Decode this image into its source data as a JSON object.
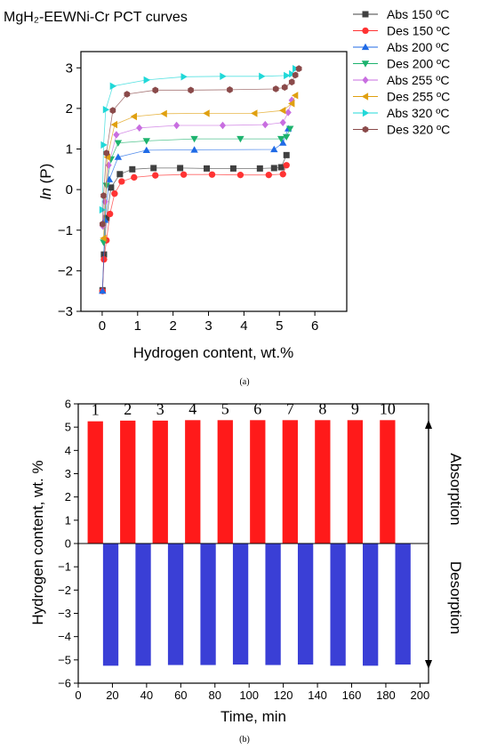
{
  "chart_data": [
    {
      "type": "scatter",
      "title": "MgH₂-EEWNi-Cr PCT curves",
      "xlabel": "Hydrogen content, wt.%",
      "ylabel_italic": "ln",
      "ylabel_rest": " (P)",
      "caption": "(a)",
      "xlim": [
        -0.6,
        6.9
      ],
      "ylim": [
        -3,
        3.4
      ],
      "xticks": [
        0,
        1,
        2,
        3,
        4,
        5,
        6
      ],
      "yticks": [
        -3,
        -2,
        -1,
        0,
        1,
        2,
        3
      ],
      "grid": false,
      "legend_position": "top-right outside",
      "series": [
        {
          "name": "Abs 150 ºC",
          "color": "#404040",
          "marker": "square",
          "x": [
            0.01,
            0.05,
            0.12,
            0.25,
            0.5,
            0.85,
            1.45,
            2.2,
            2.95,
            3.7,
            4.45,
            4.85,
            5.05,
            5.2
          ],
          "y": [
            -2.48,
            -1.6,
            -0.7,
            0.05,
            0.38,
            0.5,
            0.53,
            0.53,
            0.52,
            0.52,
            0.52,
            0.53,
            0.55,
            0.85
          ]
        },
        {
          "name": "Des 150 ºC",
          "color": "#ff3333",
          "marker": "circle",
          "x": [
            5.2,
            5.1,
            4.7,
            3.9,
            3.1,
            2.3,
            1.5,
            0.9,
            0.55,
            0.35,
            0.22,
            0.12,
            0.05,
            0.01
          ],
          "y": [
            0.6,
            0.38,
            0.36,
            0.36,
            0.37,
            0.37,
            0.35,
            0.3,
            0.2,
            -0.1,
            -0.6,
            -1.25,
            -1.72,
            -2.5
          ]
        },
        {
          "name": "Abs 200 ºC",
          "color": "#1f6ae6",
          "marker": "triangle-up",
          "x": [
            0.01,
            0.08,
            0.2,
            0.45,
            1.25,
            2.6,
            4.85,
            5.1,
            5.25
          ],
          "y": [
            -2.5,
            -0.75,
            0.25,
            0.8,
            0.97,
            0.98,
            0.99,
            1.15,
            1.5
          ]
        },
        {
          "name": "Des 200 ºC",
          "color": "#1db36e",
          "marker": "triangle-down",
          "x": [
            5.3,
            5.2,
            5.05,
            3.9,
            2.6,
            1.25,
            0.45,
            0.25,
            0.12,
            0.04
          ],
          "y": [
            1.5,
            1.3,
            1.25,
            1.25,
            1.25,
            1.2,
            1.15,
            0.75,
            0.1,
            -1.3
          ]
        },
        {
          "name": "Abs 255 ºC",
          "color": "#c86ee0",
          "marker": "diamond",
          "x": [
            0.02,
            0.08,
            0.18,
            0.4,
            1.05,
            2.1,
            3.4,
            4.6,
            5.1,
            5.25,
            5.35
          ],
          "y": [
            -0.9,
            -0.3,
            0.6,
            1.35,
            1.52,
            1.58,
            1.58,
            1.6,
            1.65,
            1.9,
            2.2
          ]
        },
        {
          "name": "Des 255 ºC",
          "color": "#e0a010",
          "marker": "triangle-left",
          "x": [
            5.45,
            5.35,
            5.1,
            4.3,
            2.95,
            1.75,
            0.9,
            0.35,
            0.15,
            0.04
          ],
          "y": [
            2.32,
            2.12,
            1.95,
            1.88,
            1.88,
            1.87,
            1.8,
            1.6,
            0.8,
            -1.2
          ]
        },
        {
          "name": "Abs 320 ºC",
          "color": "#20d8d8",
          "marker": "triangle-right",
          "x": [
            0.0,
            0.04,
            0.1,
            0.3,
            1.25,
            2.3,
            3.4,
            4.5,
            5.2,
            5.35,
            5.45
          ],
          "y": [
            -0.5,
            1.1,
            1.97,
            2.55,
            2.7,
            2.78,
            2.79,
            2.79,
            2.81,
            2.85,
            2.98
          ]
        },
        {
          "name": "Des 320 ºC",
          "color": "#8a4a4a",
          "marker": "hexagon",
          "x": [
            5.55,
            5.45,
            5.35,
            5.15,
            4.9,
            3.6,
            2.5,
            1.5,
            0.7,
            0.3,
            0.12,
            0.04,
            0.01
          ],
          "y": [
            2.98,
            2.82,
            2.65,
            2.52,
            2.48,
            2.46,
            2.45,
            2.45,
            2.35,
            1.95,
            0.9,
            -0.15,
            -0.85
          ]
        }
      ]
    },
    {
      "type": "bar",
      "xlabel": "Time, min",
      "ylabel": "Hydrogen content, wt. %",
      "caption": "(b)",
      "xlim": [
        0,
        205
      ],
      "ylim": [
        -6,
        6
      ],
      "xticks": [
        0,
        20,
        40,
        60,
        80,
        100,
        120,
        140,
        160,
        180,
        200
      ],
      "yticks": [
        -6,
        -5,
        -4,
        -3,
        -2,
        -1,
        0,
        1,
        2,
        3,
        4,
        5,
        6
      ],
      "bar_width_min": 9,
      "grid": false,
      "side_labels": {
        "top": "Absorption",
        "bottom": "Desorption"
      },
      "series": [
        {
          "name": "Absorption",
          "color": "#ff1a1a",
          "x": [
            10,
            29,
            48,
            67,
            86,
            105,
            124,
            143,
            162,
            181
          ],
          "values": [
            5.25,
            5.28,
            5.28,
            5.3,
            5.3,
            5.3,
            5.3,
            5.3,
            5.3,
            5.3
          ],
          "labels": [
            "1",
            "2",
            "3",
            "4",
            "5",
            "6",
            "7",
            "8",
            "9",
            "10"
          ]
        },
        {
          "name": "Desorption",
          "color": "#3a3fd6",
          "x": [
            19,
            38,
            57,
            76,
            95,
            114,
            133,
            152,
            171,
            190
          ],
          "values": [
            -5.25,
            -5.25,
            -5.22,
            -5.22,
            -5.2,
            -5.22,
            -5.2,
            -5.25,
            -5.25,
            -5.2
          ]
        }
      ]
    }
  ]
}
